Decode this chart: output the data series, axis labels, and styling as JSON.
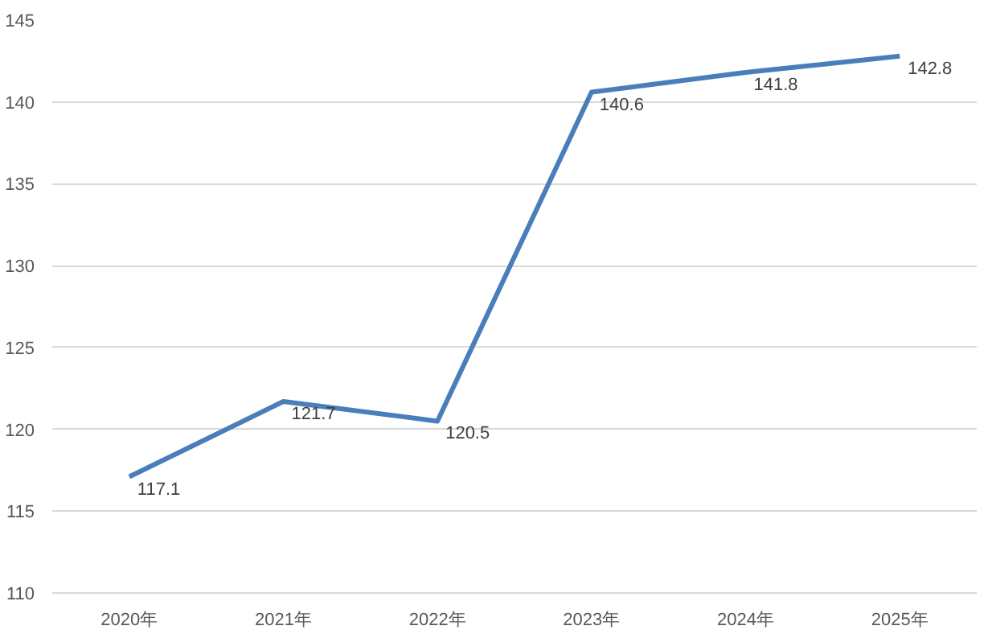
{
  "chart_data": {
    "type": "line",
    "categories": [
      "2020年",
      "2021年",
      "2022年",
      "2023年",
      "2024年",
      "2025年"
    ],
    "series": [
      {
        "color": "#4a7ebb",
        "values": [
          117.1,
          121.7,
          120.5,
          140.6,
          141.8,
          142.8
        ]
      }
    ],
    "ylim": [
      110,
      145
    ],
    "yticks": [
      110,
      115,
      120,
      125,
      130,
      135,
      140,
      145
    ],
    "grid": "y",
    "data_labels": true,
    "marker": "none",
    "line_style": "solid"
  }
}
